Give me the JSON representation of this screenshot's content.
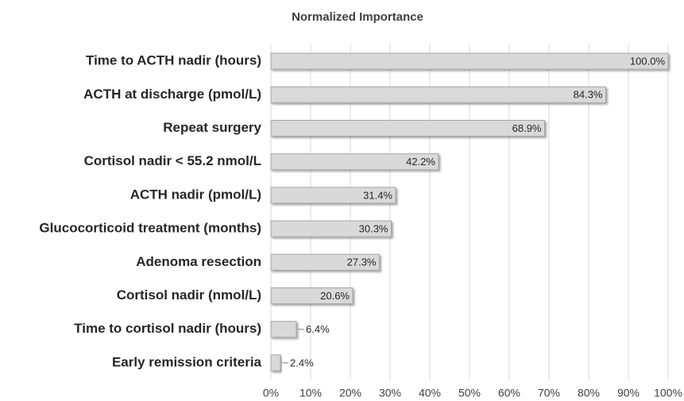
{
  "chart_data": {
    "type": "hbar",
    "title": "Normalized Importance",
    "categories": [
      "Time to ACTH nadir (hours)",
      "ACTH at discharge (pmol/L)",
      "Repeat surgery",
      "Cortisol nadir < 55.2 nmol/L",
      "ACTH nadir (pmol/L)",
      "Glucocorticoid treatment (months)",
      "Adenoma resection",
      "Cortisol nadir (nmol/L)",
      "Time to cortisol nadir (hours)",
      "Early remission criteria"
    ],
    "values": [
      100.0,
      84.3,
      68.9,
      42.2,
      31.4,
      30.3,
      27.3,
      20.6,
      6.4,
      2.4
    ],
    "value_labels": [
      "100.0%",
      "84.3%",
      "68.9%",
      "42.2%",
      "31.4%",
      "30.3%",
      "27.3%",
      "20.6%",
      "6.4%",
      "2.4%"
    ],
    "color": "#d9d9d9",
    "xlim": [
      0,
      100
    ],
    "xticks": [
      {
        "value": 0,
        "label": "0%"
      },
      {
        "value": 10,
        "label": "10%"
      },
      {
        "value": 20,
        "label": "20%"
      },
      {
        "value": 30,
        "label": "30%"
      },
      {
        "value": 40,
        "label": "40%"
      },
      {
        "value": 50,
        "label": "50%"
      },
      {
        "value": 60,
        "label": "60%"
      },
      {
        "value": 70,
        "label": "70%"
      },
      {
        "value": 80,
        "label": "80%"
      },
      {
        "value": 90,
        "label": "90%"
      },
      {
        "value": 100,
        "label": "100%"
      }
    ],
    "grid": true
  }
}
